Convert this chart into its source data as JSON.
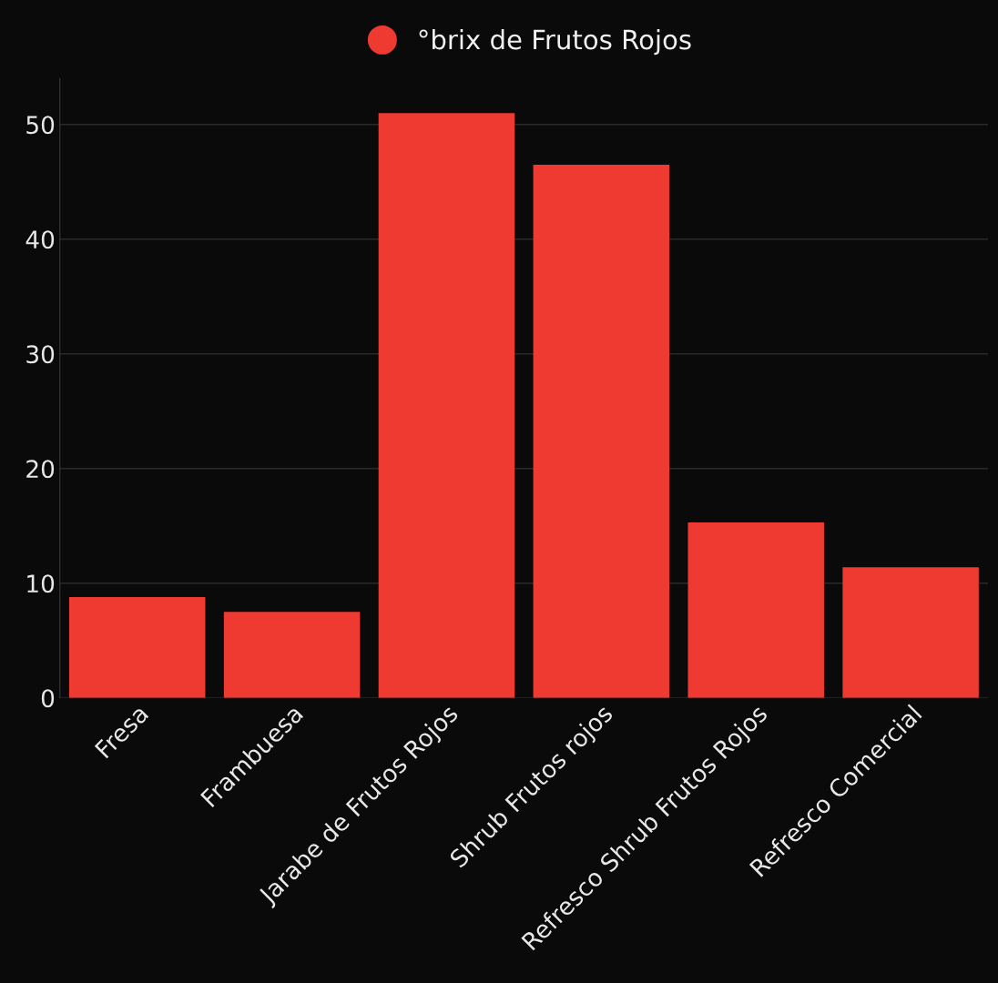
{
  "chart_data": {
    "type": "bar",
    "categories": [
      "Fresa",
      "Frambuesa",
      "Jarabe de Frutos Rojos",
      "Shrub Frutos rojos",
      "Refresco Shrub Frutos Rojos",
      "Refresco Comercial"
    ],
    "series": [
      {
        "name": "°brix de Frutos Rojos",
        "color": "#ee3a31",
        "values": [
          8.8,
          7.5,
          51.0,
          46.5,
          15.3,
          11.4
        ]
      }
    ],
    "ylim": [
      0,
      54
    ],
    "yticks": [
      0,
      10,
      20,
      30,
      40,
      50
    ],
    "grid": "y",
    "legend": "top",
    "marker": "circle"
  }
}
